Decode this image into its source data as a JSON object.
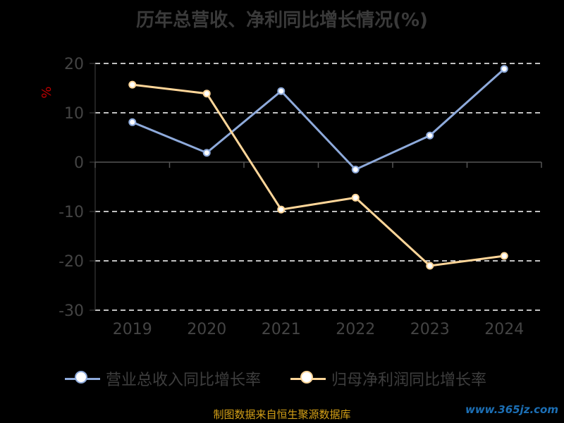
{
  "title": "历年总营收、净利同比增长情况(%)",
  "source": "制图数据来自恒生聚源数据库",
  "watermark": "www.365jz.com",
  "colors": {
    "revenue": "#8eaadb",
    "profit": "#ffd699",
    "ylabel": "#c00000"
  },
  "chart_data": {
    "type": "line",
    "title": "历年总营收、净利同比增长情况(%)",
    "xlabel": "",
    "ylabel": "%",
    "categories": [
      "2019",
      "2020",
      "2021",
      "2022",
      "2023",
      "2024"
    ],
    "ylim": [
      -30,
      20
    ],
    "yticks": [
      "20",
      "10",
      "0",
      "-10",
      "-20",
      "-30"
    ],
    "grid": true,
    "legend_position": "bottom",
    "series": [
      {
        "name": "营业总收入同比增长率",
        "values": [
          8.1,
          1.9,
          14.4,
          -1.5,
          5.4,
          18.9
        ]
      },
      {
        "name": "归母净利润同比增长率",
        "values": [
          15.7,
          13.9,
          -9.6,
          -7.2,
          -21.0,
          -19.0
        ]
      }
    ]
  }
}
